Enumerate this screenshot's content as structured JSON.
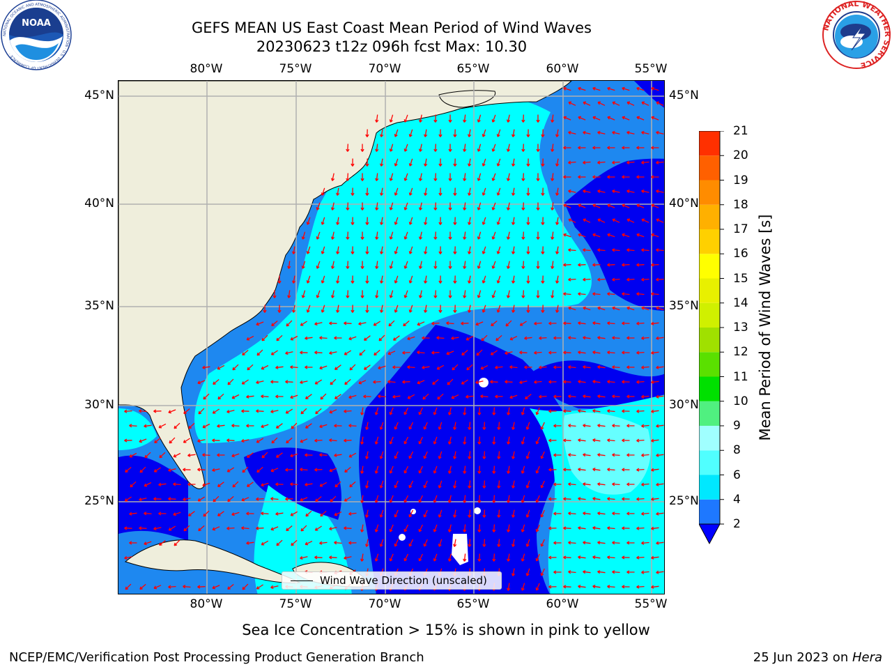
{
  "header": {
    "title_line1": "GEFS MEAN US East Coast Mean Period of Wind Waves",
    "title_line2": "20230623 t12z 096h fcst   Max: 10.30"
  },
  "map": {
    "lon_labels": [
      "80°W",
      "75°W",
      "70°W",
      "65°W",
      "60°W",
      "55°W"
    ],
    "lat_labels": [
      "45°N",
      "40°N",
      "35°N",
      "30°N",
      "25°N"
    ],
    "legend_label": "Wind Wave Direction (unscaled)",
    "arrow_color": "#ff0000",
    "land_color": "#efeedc",
    "water_colors": {
      "deep_blue": "#0000f0",
      "mid_blue": "#1e88f0",
      "cyan": "#00ffff",
      "light_cyan": "#66ffff"
    }
  },
  "colorbar": {
    "label": "Mean Period of Wind Waves [s]",
    "ticks": [
      "2",
      "4",
      "6",
      "8",
      "9",
      "10",
      "11",
      "12",
      "13",
      "14",
      "15",
      "16",
      "17",
      "18",
      "19",
      "20",
      "21"
    ],
    "colors": [
      "#1e78ff",
      "#00e8ff",
      "#50ffff",
      "#a0ffff",
      "#50f080",
      "#00e000",
      "#5ae000",
      "#a0e000",
      "#d0f000",
      "#e8f000",
      "#ffff00",
      "#ffd000",
      "#ffb000",
      "#ff8c00",
      "#ff6000",
      "#ff3000",
      "#ff0000"
    ],
    "extend_color": "#0000ff"
  },
  "footer": {
    "note": "Sea Ice Concentration > 15% is shown in pink to yellow",
    "credit": "NCEP/EMC/Verification Post Processing Product Generation Branch",
    "date": "25 Jun 2023 on ",
    "machine": "Hera"
  },
  "logos": {
    "noaa_text": "NOAA",
    "noaa_ring": "NATIONAL OCEANIC AND ATMOSPHERIC ADMINISTRATION · U.S. DEPARTMENT OF COMMERCE ·",
    "nws_ring": "NATIONAL WEATHER SERVICE"
  }
}
